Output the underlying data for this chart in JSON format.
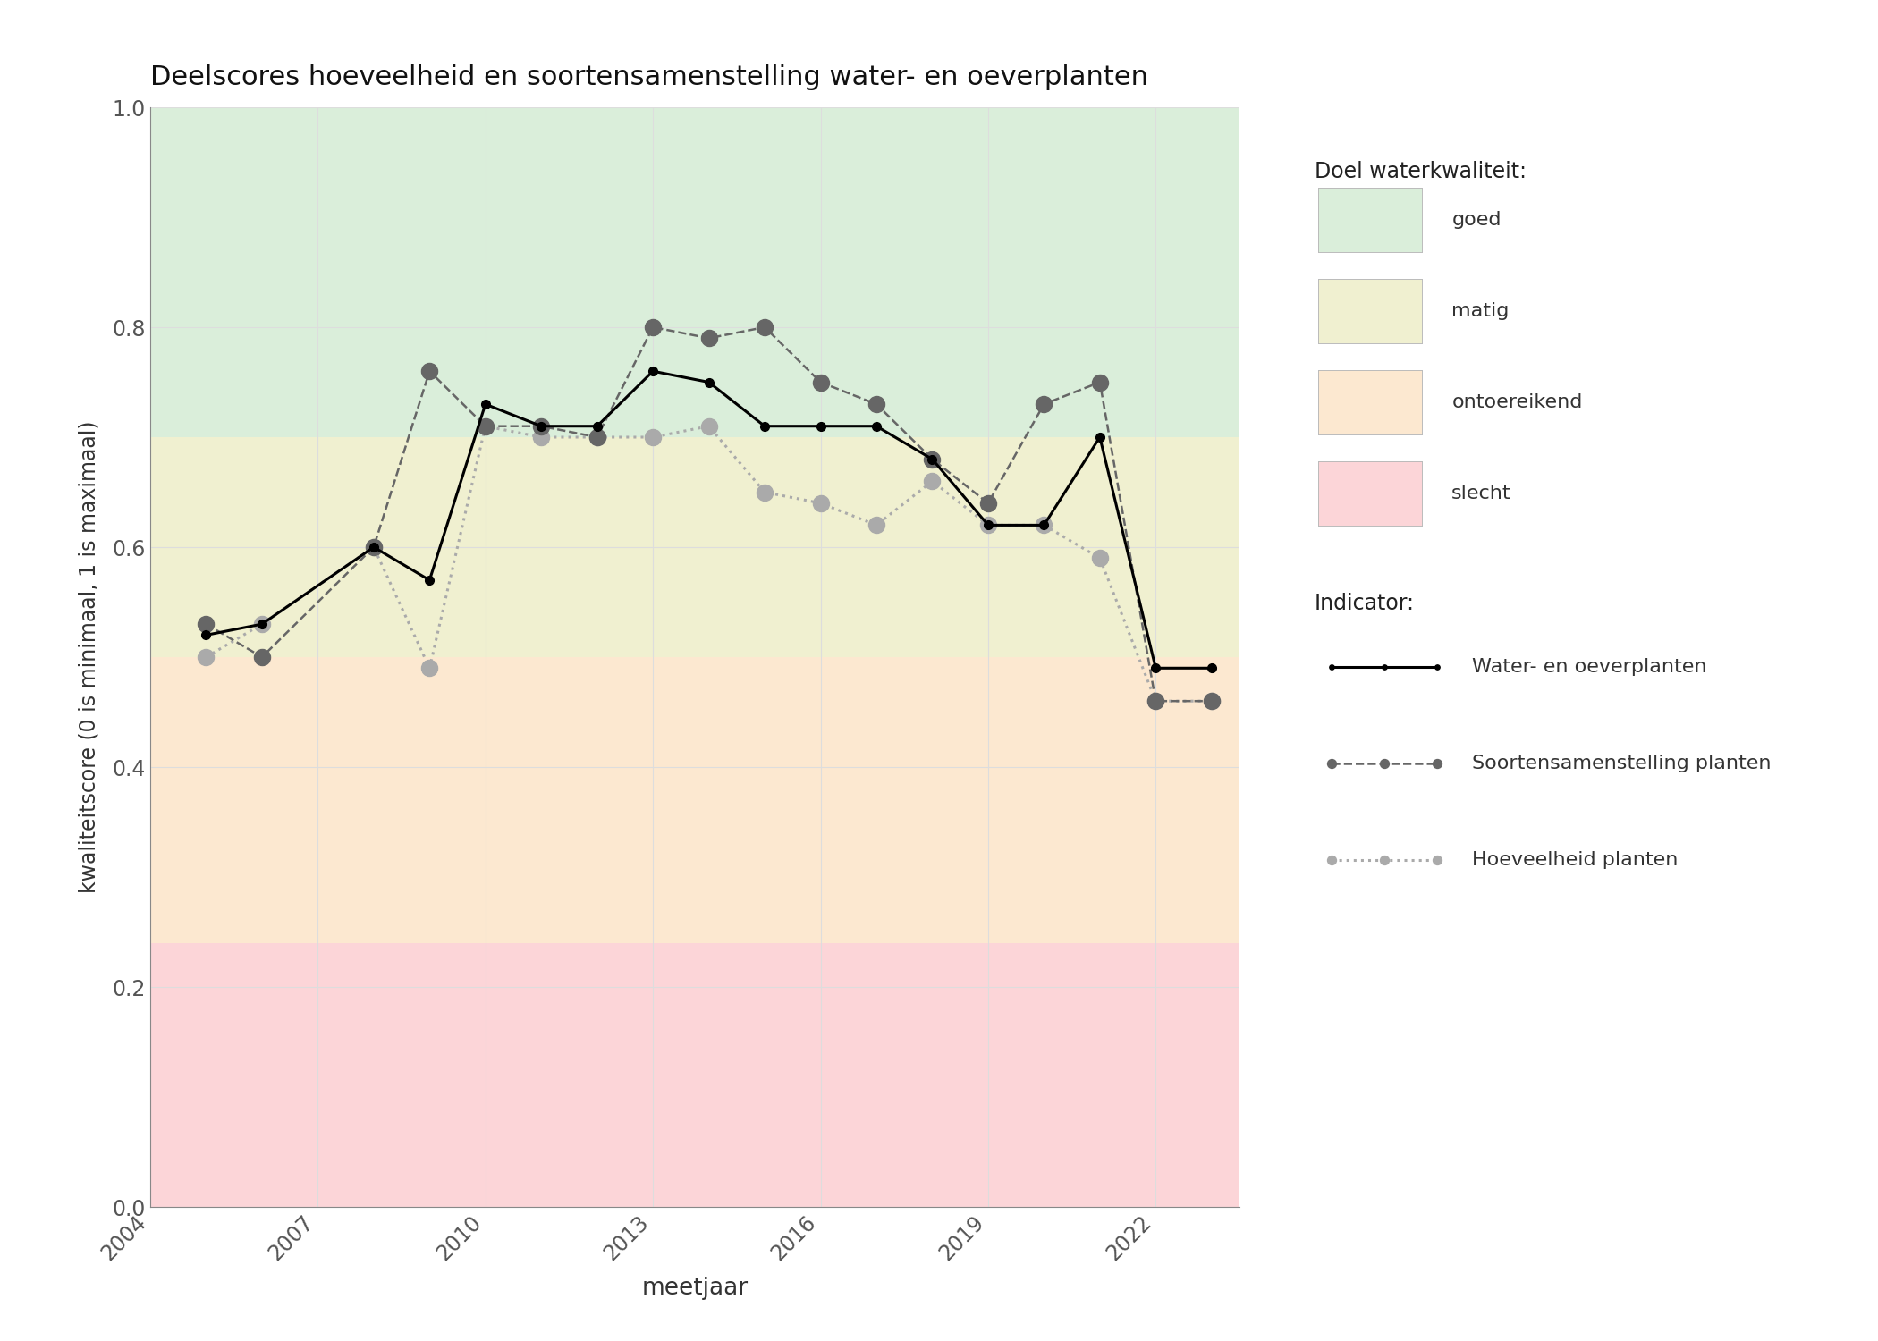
{
  "title": "Deelscores hoeveelheid en soortensamenstelling water- en oeverplanten",
  "xlabel": "meetjaar",
  "ylabel": "kwaliteitscore (0 is minimaal, 1 is maximaal)",
  "xlim": [
    2004,
    2023.5
  ],
  "ylim": [
    0.0,
    1.0
  ],
  "xticks": [
    2004,
    2007,
    2010,
    2013,
    2016,
    2019,
    2022
  ],
  "yticks": [
    0.0,
    0.2,
    0.4,
    0.6,
    0.8,
    1.0
  ],
  "bg_good": {
    "ymin": 0.7,
    "ymax": 1.0,
    "color": "#daeeda"
  },
  "bg_matig": {
    "ymin": 0.5,
    "ymax": 0.7,
    "color": "#f0f0d0"
  },
  "bg_ontoereikend": {
    "ymin": 0.24,
    "ymax": 0.5,
    "color": "#fce8d0"
  },
  "bg_slecht": {
    "ymin": 0.0,
    "ymax": 0.24,
    "color": "#fcd5d8"
  },
  "water_oever": {
    "years": [
      2005,
      2006,
      2008,
      2009,
      2010,
      2011,
      2012,
      2013,
      2014,
      2015,
      2016,
      2017,
      2018,
      2019,
      2020,
      2021,
      2022,
      2023
    ],
    "values": [
      0.52,
      0.53,
      0.6,
      0.57,
      0.73,
      0.71,
      0.71,
      0.76,
      0.75,
      0.71,
      0.71,
      0.71,
      0.68,
      0.62,
      0.62,
      0.7,
      0.49,
      0.49
    ],
    "color": "#000000",
    "linestyle": "-",
    "linewidth": 2.2,
    "markersize": 7,
    "label": "Water- en oeverplanten"
  },
  "soortensamenstelling": {
    "years": [
      2005,
      2006,
      2008,
      2009,
      2010,
      2011,
      2012,
      2013,
      2014,
      2015,
      2016,
      2017,
      2018,
      2019,
      2020,
      2021,
      2022,
      2023
    ],
    "values": [
      0.53,
      0.5,
      0.6,
      0.76,
      0.71,
      0.71,
      0.7,
      0.8,
      0.79,
      0.8,
      0.75,
      0.73,
      0.68,
      0.64,
      0.73,
      0.75,
      0.46,
      0.46
    ],
    "color": "#666666",
    "linestyle": "--",
    "linewidth": 1.8,
    "markersize": 13,
    "label": "Soortensamenstelling planten"
  },
  "hoeveelheid": {
    "years": [
      2005,
      2006,
      2008,
      2009,
      2010,
      2011,
      2012,
      2013,
      2014,
      2015,
      2016,
      2017,
      2018,
      2019,
      2020,
      2021,
      2022,
      2023
    ],
    "values": [
      0.5,
      0.53,
      0.6,
      0.49,
      0.71,
      0.7,
      0.7,
      0.7,
      0.71,
      0.65,
      0.64,
      0.62,
      0.66,
      0.62,
      0.62,
      0.59,
      0.46,
      0.46
    ],
    "color": "#aaaaaa",
    "linestyle": ":",
    "linewidth": 2.2,
    "markersize": 13,
    "label": "Hoeveelheid planten"
  },
  "legend_quality_title": "Doel waterkwaliteit:",
  "legend_indicator_title": "Indicator:",
  "legend_quality": [
    {
      "label": "goed",
      "color": "#daeeda"
    },
    {
      "label": "matig",
      "color": "#f0f0d0"
    },
    {
      "label": "ontoereikend",
      "color": "#fce8d0"
    },
    {
      "label": "slecht",
      "color": "#fcd5d8"
    }
  ],
  "background_color": "#ffffff",
  "grid_color": "#dddddd"
}
